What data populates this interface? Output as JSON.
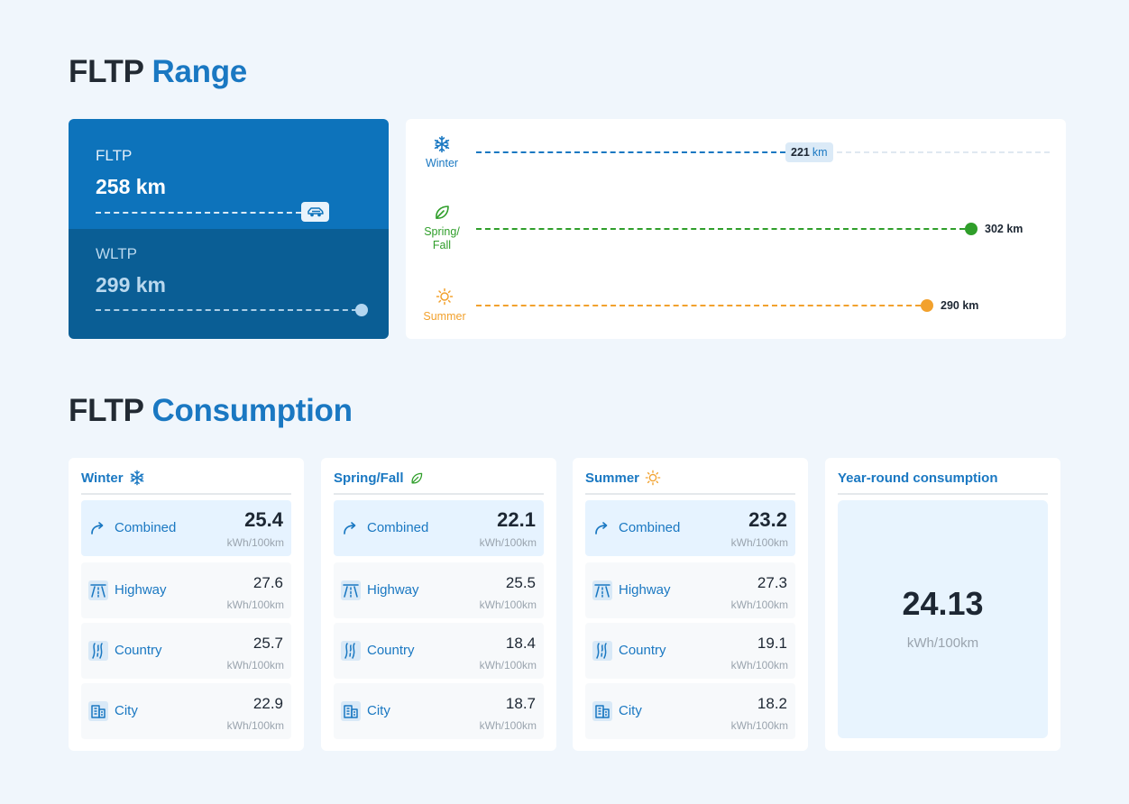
{
  "range": {
    "heading_prefix": "FLTP",
    "heading_accent": "Range",
    "fltp": {
      "label": "FLTP",
      "value": "258 km"
    },
    "wltp": {
      "label": "WLTP",
      "value": "299 km"
    },
    "seasons": [
      {
        "label": "Winter",
        "value": "221",
        "unit": "km",
        "color": "#1a78c2",
        "icon": "snowflake-icon"
      },
      {
        "label": "Spring/ Fall",
        "value": "302 km",
        "color": "#2f9e2a",
        "icon": "leaf-icon"
      },
      {
        "label": "Summer",
        "value": "290 km",
        "color": "#f2a12d",
        "icon": "sun-icon"
      }
    ]
  },
  "consumption": {
    "heading_prefix": "FLTP",
    "heading_accent": "Consumption",
    "unit": "kWh/100km",
    "cards": [
      {
        "title": "Winter",
        "icon": "snowflake-icon",
        "rows": [
          {
            "name": "Combined",
            "value": "25.4",
            "icon": "route-arrow-icon"
          },
          {
            "name": "Highway",
            "value": "27.6",
            "icon": "highway-icon"
          },
          {
            "name": "Country",
            "value": "25.7",
            "icon": "country-road-icon"
          },
          {
            "name": "City",
            "value": "22.9",
            "icon": "city-buildings-icon"
          }
        ]
      },
      {
        "title": "Spring/Fall",
        "icon": "leaf-icon",
        "rows": [
          {
            "name": "Combined",
            "value": "22.1",
            "icon": "route-arrow-icon"
          },
          {
            "name": "Highway",
            "value": "25.5",
            "icon": "highway-icon"
          },
          {
            "name": "Country",
            "value": "18.4",
            "icon": "country-road-icon"
          },
          {
            "name": "City",
            "value": "18.7",
            "icon": "city-buildings-icon"
          }
        ]
      },
      {
        "title": "Summer",
        "icon": "sun-icon",
        "rows": [
          {
            "name": "Combined",
            "value": "23.2",
            "icon": "route-arrow-icon"
          },
          {
            "name": "Highway",
            "value": "27.3",
            "icon": "highway-icon"
          },
          {
            "name": "Country",
            "value": "19.1",
            "icon": "country-road-icon"
          },
          {
            "name": "City",
            "value": "18.2",
            "icon": "city-buildings-icon"
          }
        ]
      }
    ],
    "year_round": {
      "title": "Year-round consumption",
      "value": "24.13",
      "unit": "kWh/100km"
    }
  }
}
